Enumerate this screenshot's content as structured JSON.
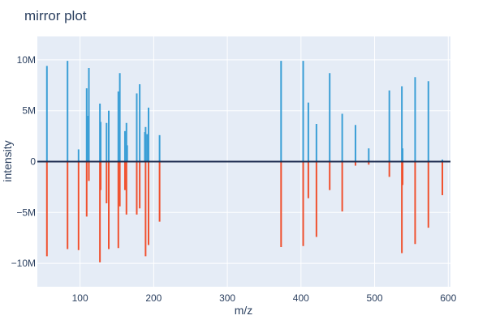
{
  "chart_data": {
    "type": "bar",
    "title": "mirror plot",
    "xlabel": "m/z",
    "ylabel": "intensity",
    "xlim": [
      42,
      603
    ],
    "ylim": [
      -12300000,
      12300000
    ],
    "x_ticks": [
      100,
      200,
      300,
      400,
      500,
      600
    ],
    "y_ticks": [
      -10000000,
      -5000000,
      0,
      5000000,
      10000000
    ],
    "y_tick_labels": [
      "−10M",
      "−5M",
      "0",
      "5M",
      "10M"
    ],
    "grid": true,
    "colors": {
      "top": "#3b9fd6",
      "bottom": "#f0512f",
      "zero_line": "#1c2b4f",
      "plot_bg": "#e5ecf6",
      "grid": "#ffffff"
    },
    "series": [
      {
        "values": [
          {
            "x": 55,
            "y": 9400000
          },
          {
            "x": 83,
            "y": 9900000
          },
          {
            "x": 98,
            "y": 1200000
          },
          {
            "x": 109,
            "y": 7200000
          },
          {
            "x": 110,
            "y": 4500000
          },
          {
            "x": 112,
            "y": 9200000
          },
          {
            "x": 127,
            "y": 5700000
          },
          {
            "x": 128,
            "y": 3900000
          },
          {
            "x": 136,
            "y": 3800000
          },
          {
            "x": 139,
            "y": 5000000
          },
          {
            "x": 152,
            "y": 6900000
          },
          {
            "x": 154,
            "y": 8700000
          },
          {
            "x": 161,
            "y": 3000000
          },
          {
            "x": 163,
            "y": 3800000
          },
          {
            "x": 164,
            "y": 1600000
          },
          {
            "x": 177,
            "y": 6700000
          },
          {
            "x": 181,
            "y": 7600000
          },
          {
            "x": 188,
            "y": 2900000
          },
          {
            "x": 189,
            "y": 3400000
          },
          {
            "x": 191,
            "y": 2700000
          },
          {
            "x": 193,
            "y": 5300000
          },
          {
            "x": 208,
            "y": 2600000
          },
          {
            "x": 373,
            "y": 9900000
          },
          {
            "x": 403,
            "y": 9900000
          },
          {
            "x": 410,
            "y": 5800000
          },
          {
            "x": 421,
            "y": 3700000
          },
          {
            "x": 439,
            "y": 8700000
          },
          {
            "x": 456,
            "y": 4700000
          },
          {
            "x": 474,
            "y": 3600000
          },
          {
            "x": 492,
            "y": 1300000
          },
          {
            "x": 520,
            "y": 7000000
          },
          {
            "x": 537,
            "y": 7400000
          },
          {
            "x": 538,
            "y": 1300000
          },
          {
            "x": 555,
            "y": 8300000
          },
          {
            "x": 573,
            "y": 7900000
          },
          {
            "x": 592,
            "y": 200000
          }
        ]
      },
      {
        "values": [
          {
            "x": 55,
            "y": -9300000
          },
          {
            "x": 83,
            "y": -8600000
          },
          {
            "x": 98,
            "y": -8700000
          },
          {
            "x": 109,
            "y": -5400000
          },
          {
            "x": 112,
            "y": -1900000
          },
          {
            "x": 127,
            "y": -9900000
          },
          {
            "x": 128,
            "y": -2800000
          },
          {
            "x": 136,
            "y": -4100000
          },
          {
            "x": 139,
            "y": -8600000
          },
          {
            "x": 152,
            "y": -8500000
          },
          {
            "x": 154,
            "y": -4400000
          },
          {
            "x": 161,
            "y": -2800000
          },
          {
            "x": 163,
            "y": -5200000
          },
          {
            "x": 177,
            "y": -5200000
          },
          {
            "x": 181,
            "y": -4600000
          },
          {
            "x": 189,
            "y": -9300000
          },
          {
            "x": 193,
            "y": -8200000
          },
          {
            "x": 208,
            "y": -5900000
          },
          {
            "x": 373,
            "y": -8400000
          },
          {
            "x": 403,
            "y": -8300000
          },
          {
            "x": 410,
            "y": -3600000
          },
          {
            "x": 421,
            "y": -7400000
          },
          {
            "x": 439,
            "y": -2800000
          },
          {
            "x": 456,
            "y": -4900000
          },
          {
            "x": 474,
            "y": -400000
          },
          {
            "x": 492,
            "y": -300000
          },
          {
            "x": 520,
            "y": -1500000
          },
          {
            "x": 537,
            "y": -9000000
          },
          {
            "x": 538,
            "y": -2300000
          },
          {
            "x": 555,
            "y": -8100000
          },
          {
            "x": 573,
            "y": -6500000
          },
          {
            "x": 592,
            "y": -3300000
          }
        ]
      }
    ]
  }
}
